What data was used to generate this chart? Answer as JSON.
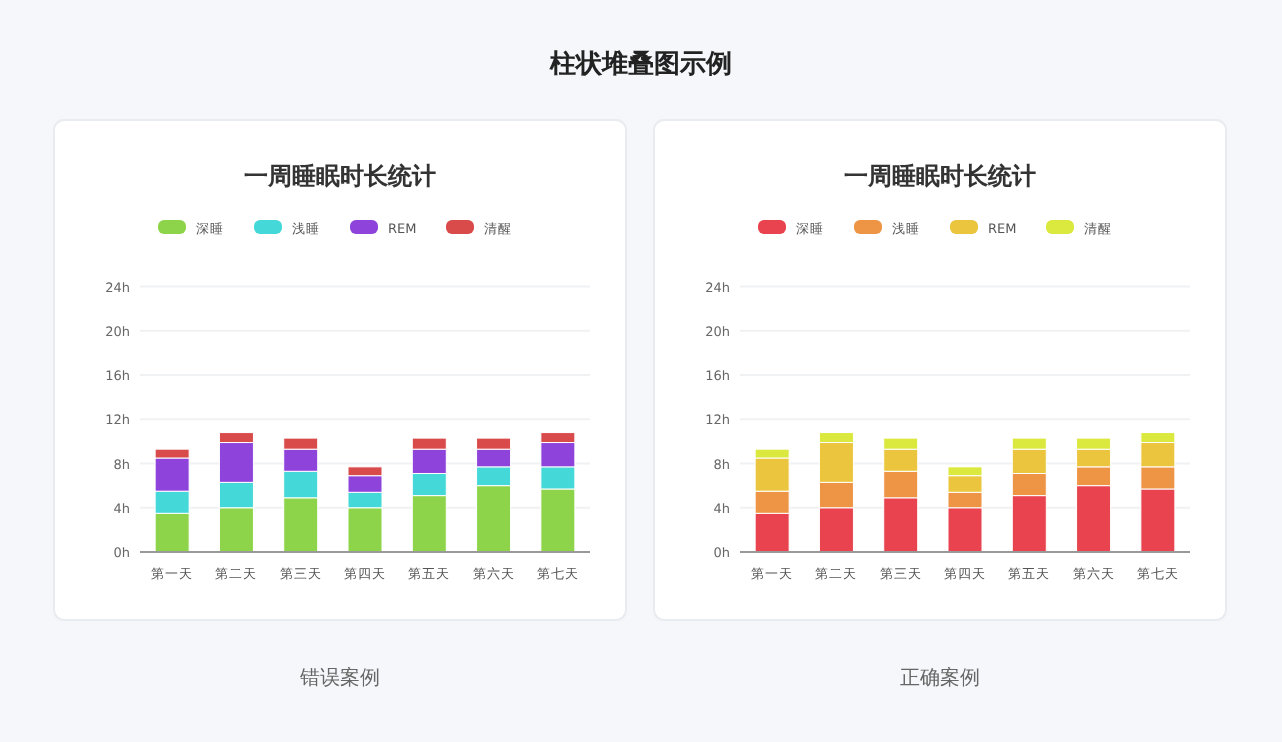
{
  "chart_data": [
    {
      "type": "bar",
      "title": "一周睡眠时长统计",
      "stacked": true,
      "grid": "y",
      "legend": "top",
      "categories": [
        "第一天",
        "第二天",
        "第三天",
        "第四天",
        "第五天",
        "第六天",
        "第七天"
      ],
      "series": [
        {
          "name": "深睡",
          "color": "#8ed44a",
          "values": [
            3.5,
            4.0,
            4.9,
            4.0,
            5.1,
            6.0,
            5.7
          ]
        },
        {
          "name": "浅睡",
          "color": "#45d8d8",
          "values": [
            2.0,
            2.3,
            2.4,
            1.4,
            2.0,
            1.7,
            2.0
          ]
        },
        {
          "name": "REM",
          "color": "#8e44db",
          "values": [
            3.0,
            3.6,
            2.0,
            1.5,
            2.2,
            1.6,
            2.2
          ]
        },
        {
          "name": "清醒",
          "color": "#d94b4b",
          "values": [
            0.8,
            0.9,
            1.0,
            0.8,
            1.0,
            1.0,
            0.9
          ]
        }
      ],
      "ylim": [
        0,
        24
      ],
      "yticks": [
        {
          "value": 0,
          "label": "0h"
        },
        {
          "value": 4,
          "label": "4h"
        },
        {
          "value": 8,
          "label": "8h"
        },
        {
          "value": 12,
          "label": "12h"
        },
        {
          "value": 16,
          "label": "16h"
        },
        {
          "value": 20,
          "label": "20h"
        },
        {
          "value": 24,
          "label": "24h"
        }
      ],
      "annotations": [
        "柱状堆叠图示例",
        "错误案例"
      ]
    },
    {
      "type": "bar",
      "title": "一周睡眠时长统计",
      "stacked": true,
      "grid": "y",
      "legend": "top",
      "categories": [
        "第一天",
        "第二天",
        "第三天",
        "第四天",
        "第五天",
        "第六天",
        "第七天"
      ],
      "series": [
        {
          "name": "深睡",
          "color": "#e8434e",
          "values": [
            3.5,
            4.0,
            4.9,
            4.0,
            5.1,
            6.0,
            5.7
          ]
        },
        {
          "name": "浅睡",
          "color": "#ee9445",
          "values": [
            2.0,
            2.3,
            2.4,
            1.4,
            2.0,
            1.7,
            2.0
          ]
        },
        {
          "name": "REM",
          "color": "#ecc53e",
          "values": [
            3.0,
            3.6,
            2.0,
            1.5,
            2.2,
            1.6,
            2.2
          ]
        },
        {
          "name": "清醒",
          "color": "#dbe83e",
          "values": [
            0.8,
            0.9,
            1.0,
            0.8,
            1.0,
            1.0,
            0.9
          ]
        }
      ],
      "ylim": [
        0,
        24
      ],
      "yticks": [
        {
          "value": 0,
          "label": "0h"
        },
        {
          "value": 4,
          "label": "4h"
        },
        {
          "value": 8,
          "label": "8h"
        },
        {
          "value": 12,
          "label": "12h"
        },
        {
          "value": 16,
          "label": "16h"
        },
        {
          "value": 20,
          "label": "20h"
        },
        {
          "value": 24,
          "label": "24h"
        }
      ],
      "annotations": [
        "正确案例"
      ]
    }
  ]
}
